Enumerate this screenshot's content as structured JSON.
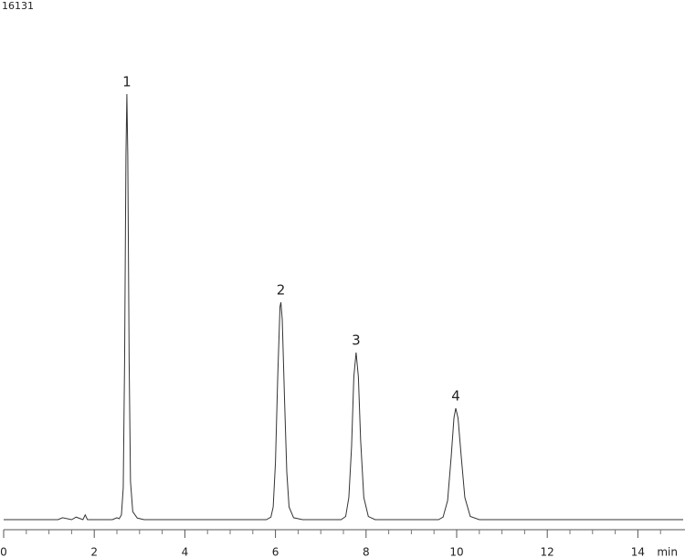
{
  "chart_data": {
    "type": "line",
    "title": null,
    "x_label": "min",
    "x": [
      0,
      1.2,
      1.3,
      1.5,
      1.6,
      1.75,
      1.8,
      1.85,
      2.0,
      2.4,
      2.5,
      2.55,
      2.6,
      2.64,
      2.67,
      2.7,
      2.72,
      2.74,
      2.77,
      2.8,
      2.85,
      2.95,
      3.1,
      5.8,
      5.9,
      5.95,
      6.0,
      6.05,
      6.1,
      6.12,
      6.15,
      6.2,
      6.25,
      6.3,
      6.4,
      6.6,
      7.45,
      7.55,
      7.62,
      7.68,
      7.73,
      7.78,
      7.83,
      7.88,
      7.95,
      8.05,
      8.2,
      9.6,
      9.7,
      9.8,
      9.88,
      9.94,
      9.98,
      10.03,
      10.1,
      10.18,
      10.3,
      10.5,
      15
    ],
    "series": [
      {
        "name": null,
        "color": "#333333",
        "values": [
          0,
          0,
          60,
          0,
          80,
          0,
          150,
          0,
          0,
          0,
          60,
          30,
          150,
          1000,
          5000,
          11500,
          13399,
          11500,
          5000,
          1200,
          250,
          50,
          0,
          0,
          80,
          400,
          1800,
          4500,
          6700,
          6843,
          6300,
          3800,
          1500,
          400,
          60,
          0,
          0,
          100,
          700,
          2300,
          4500,
          5262,
          4500,
          2500,
          700,
          100,
          0,
          0,
          80,
          600,
          2000,
          3200,
          3508,
          3200,
          2000,
          700,
          100,
          0,
          0
        ]
      }
    ],
    "annotations": [
      {
        "text": "1",
        "x": 2.72,
        "y": 13399
      },
      {
        "text": "2",
        "x": 6.12,
        "y": 6843
      },
      {
        "text": "3",
        "x": 7.78,
        "y": 5262
      },
      {
        "text": "4",
        "x": 9.98,
        "y": 3508
      }
    ],
    "xlim": [
      0,
      15
    ],
    "xticks": [
      0,
      2,
      4,
      6,
      8,
      10,
      12,
      14
    ],
    "minor_xticks": [
      0.5,
      1,
      1.5,
      2.5,
      3,
      3.5,
      4.5,
      5,
      5.5,
      6.5,
      7,
      7.5,
      8.5,
      9,
      9.5,
      10.5,
      11,
      11.5,
      12.5,
      13,
      13.5,
      14.5
    ],
    "ylim": [
      0,
      16131
    ],
    "yticks": [
      16131
    ],
    "grid": false
  }
}
